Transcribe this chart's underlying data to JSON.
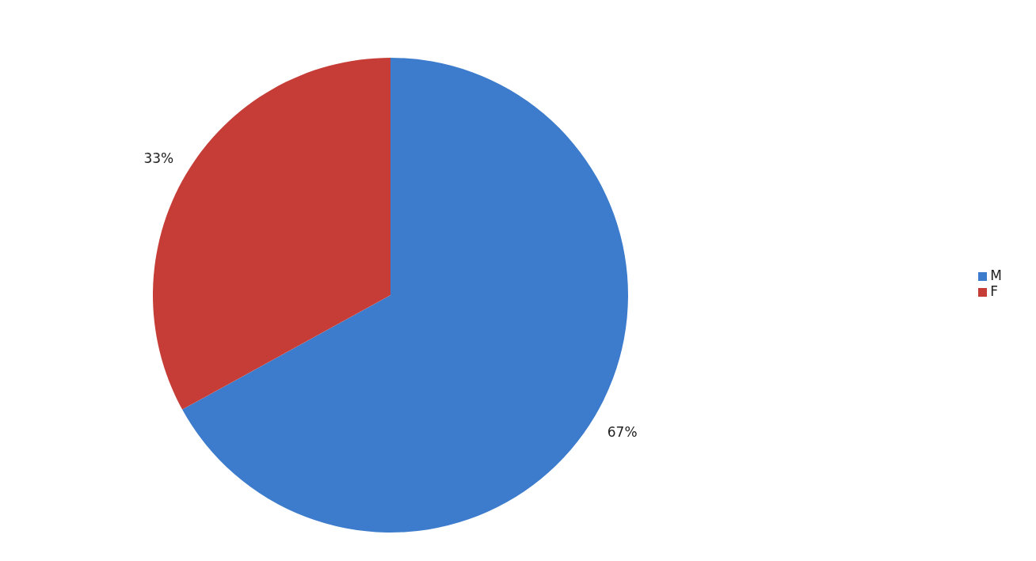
{
  "chart_data": {
    "type": "pie",
    "categories": [
      "M",
      "F"
    ],
    "values": [
      67,
      33
    ],
    "colors": [
      "#3d7ccc",
      "#c63d37"
    ],
    "value_labels": [
      "67%",
      "33%"
    ],
    "legend": "right"
  }
}
